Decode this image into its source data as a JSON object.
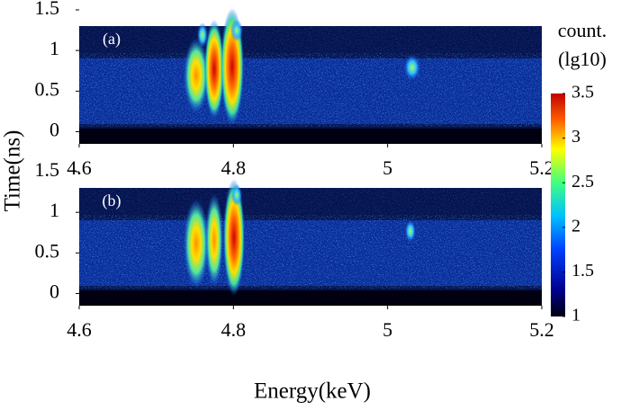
{
  "chart_data": [
    {
      "type": "heatmap",
      "panel_label": "(a)",
      "xlim": [
        4.6,
        5.2
      ],
      "xticks": [
        4.6,
        4.8,
        5,
        5.2
      ],
      "ylim": [
        -0.15,
        1.5
      ],
      "yticks": [
        1.5,
        1,
        0.5,
        0
      ]
    },
    {
      "type": "heatmap",
      "panel_label": "(b)",
      "xlim": [
        4.6,
        5.2
      ],
      "xticks": [
        4.6,
        4.8,
        5,
        5.2
      ],
      "ylim": [
        -0.15,
        1.5
      ],
      "yticks": [
        1.5,
        1,
        0.5,
        0
      ]
    }
  ],
  "xlabel": "Energy(keV)",
  "ylabel": "Time(ns)",
  "colorbar": {
    "title": [
      "count.",
      "(lg10)"
    ],
    "clim": [
      1,
      3.5
    ],
    "ticks": [
      3.5,
      3,
      2.5,
      2,
      1.5,
      1
    ]
  }
}
